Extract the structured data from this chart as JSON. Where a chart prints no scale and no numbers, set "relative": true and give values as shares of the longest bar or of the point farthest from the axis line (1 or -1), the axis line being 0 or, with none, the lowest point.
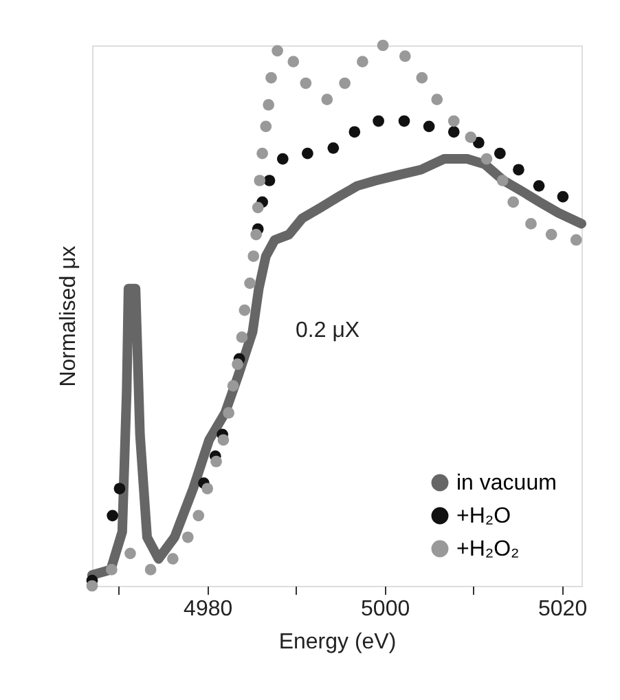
{
  "chart_data": {
    "type": "line",
    "relative": true,
    "xlabel": "Energy (eV)",
    "ylabel": "Normalised μx",
    "annotations": [
      "0.2 μX"
    ],
    "xlim": [
      4967.0,
      5022.2
    ],
    "xticks": [
      {
        "value": 4970,
        "label": null
      },
      4980,
      {
        "value": 4990,
        "label": null
      },
      5000,
      {
        "value": 5010,
        "label": null
      },
      5020
    ],
    "legend": "bottom right",
    "grid": false,
    "series": [
      {
        "name": "in vacuum",
        "type": "line",
        "color": "#666666",
        "marker": "none",
        "line_style": "solid",
        "x": [
          4967.0,
          4969.1,
          4970.4,
          4970.9,
          4971.1,
          4971.9,
          4972.4,
          4973.2,
          4974.5,
          4976.3,
          4978.4,
          4980.2,
          4982.0,
          4983.5,
          4985.1,
          4985.8,
          4986.6,
          4987.6,
          4989.2,
          4990.7,
          4992.8,
          4994.8,
          4996.9,
          4999.0,
          5001.5,
          5004.1,
          5006.7,
          5009.3,
          5011.3,
          5013.4,
          5015.5,
          5017.5,
          5019.6,
          5022.2
        ],
        "values": [
          0.02,
          0.03,
          0.1,
          0.36,
          0.55,
          0.55,
          0.28,
          0.09,
          0.05,
          0.09,
          0.18,
          0.27,
          0.32,
          0.39,
          0.47,
          0.55,
          0.61,
          0.64,
          0.65,
          0.68,
          0.7,
          0.72,
          0.74,
          0.75,
          0.76,
          0.77,
          0.79,
          0.79,
          0.78,
          0.75,
          0.73,
          0.71,
          0.69,
          0.67
        ]
      },
      {
        "name": "+H₂O",
        "type": "scatter",
        "color": "#111111",
        "marker": "circle",
        "x": [
          4967.0,
          4969.3,
          4970.1,
          4979.6,
          4980.9,
          4981.7,
          4982.5,
          4983.1,
          4983.6,
          4984.0,
          4984.4,
          4985.0,
          4985.3,
          4985.7,
          4986.2,
          4987.0,
          4988.5,
          4991.3,
          4994.2,
          4996.6,
          4999.3,
          5002.2,
          5005.0,
          5007.8,
          5010.6,
          5013.0,
          5015.1,
          5017.4,
          5020.1
        ],
        "values": [
          0.01,
          0.13,
          0.18,
          0.19,
          0.24,
          0.28,
          null,
          null,
          0.42,
          null,
          null,
          null,
          null,
          0.66,
          0.71,
          0.75,
          0.79,
          0.8,
          0.81,
          0.84,
          0.86,
          0.86,
          0.85,
          0.84,
          0.82,
          0.8,
          0.77,
          0.74,
          0.72
        ]
      },
      {
        "name": "+H₂O₂",
        "type": "scatter",
        "color": "#999999",
        "marker": "circle",
        "x": [
          4967.0,
          4969.2,
          4971.3,
          4973.6,
          4976.1,
          4977.8,
          4979.0,
          4980.0,
          4981.0,
          4981.8,
          4982.4,
          4982.9,
          4983.4,
          4983.9,
          4984.2,
          4984.8,
          4985.2,
          4985.5,
          4985.7,
          4985.9,
          4986.2,
          4986.6,
          4986.9,
          4987.2,
          4987.9,
          4989.7,
          4991.1,
          4993.5,
          4995.5,
          4997.5,
          4999.8,
          5002.3,
          5004.2,
          5005.9,
          5007.8,
          5009.7,
          5011.5,
          5013.3,
          5014.5,
          5016.5,
          5018.8,
          5021.6
        ],
        "values": [
          0.0,
          0.03,
          0.06,
          0.03,
          0.05,
          0.09,
          0.13,
          0.18,
          0.23,
          0.27,
          0.32,
          0.37,
          0.41,
          0.46,
          0.51,
          0.56,
          0.61,
          0.65,
          0.7,
          0.75,
          0.8,
          0.85,
          0.89,
          0.94,
          0.99,
          0.97,
          0.93,
          0.9,
          0.93,
          0.97,
          1.0,
          0.98,
          0.94,
          0.9,
          0.86,
          0.83,
          0.79,
          0.75,
          0.71,
          0.67,
          0.65,
          0.64
        ]
      }
    ]
  }
}
